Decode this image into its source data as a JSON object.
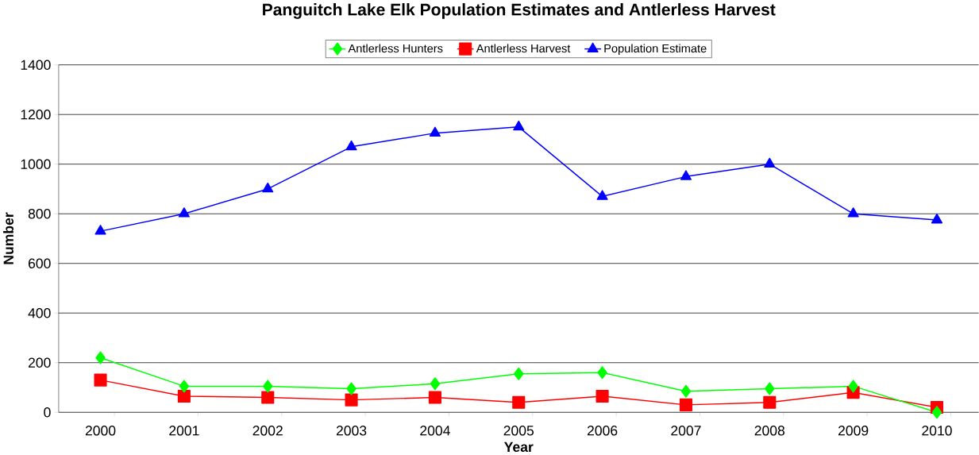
{
  "chart_data": {
    "type": "line",
    "title": "Panguitch Lake Elk Population Estimates and Antlerless Harvest",
    "xlabel": "Year",
    "ylabel": "Number",
    "categories": [
      "2000",
      "2001",
      "2002",
      "2003",
      "2004",
      "2005",
      "2006",
      "2007",
      "2008",
      "2009",
      "2010"
    ],
    "series": [
      {
        "name": "Antlerless Hunters",
        "color": "#00ff00",
        "marker": "diamond",
        "values": [
          220,
          105,
          105,
          95,
          115,
          155,
          160,
          85,
          95,
          105,
          0
        ]
      },
      {
        "name": "Antlerless Harvest",
        "color": "#ff0000",
        "marker": "square",
        "values": [
          130,
          65,
          60,
          50,
          60,
          40,
          65,
          30,
          40,
          80,
          20
        ]
      },
      {
        "name": "Population Estimate",
        "color": "#0000ff",
        "marker": "triangle",
        "values": [
          730,
          800,
          900,
          1070,
          1125,
          1150,
          870,
          950,
          1000,
          800,
          775
        ]
      }
    ],
    "ylim": [
      0,
      1400
    ],
    "yticks": [
      0,
      200,
      400,
      600,
      800,
      1000,
      1200,
      1400
    ],
    "grid": "y",
    "legend": "top"
  }
}
